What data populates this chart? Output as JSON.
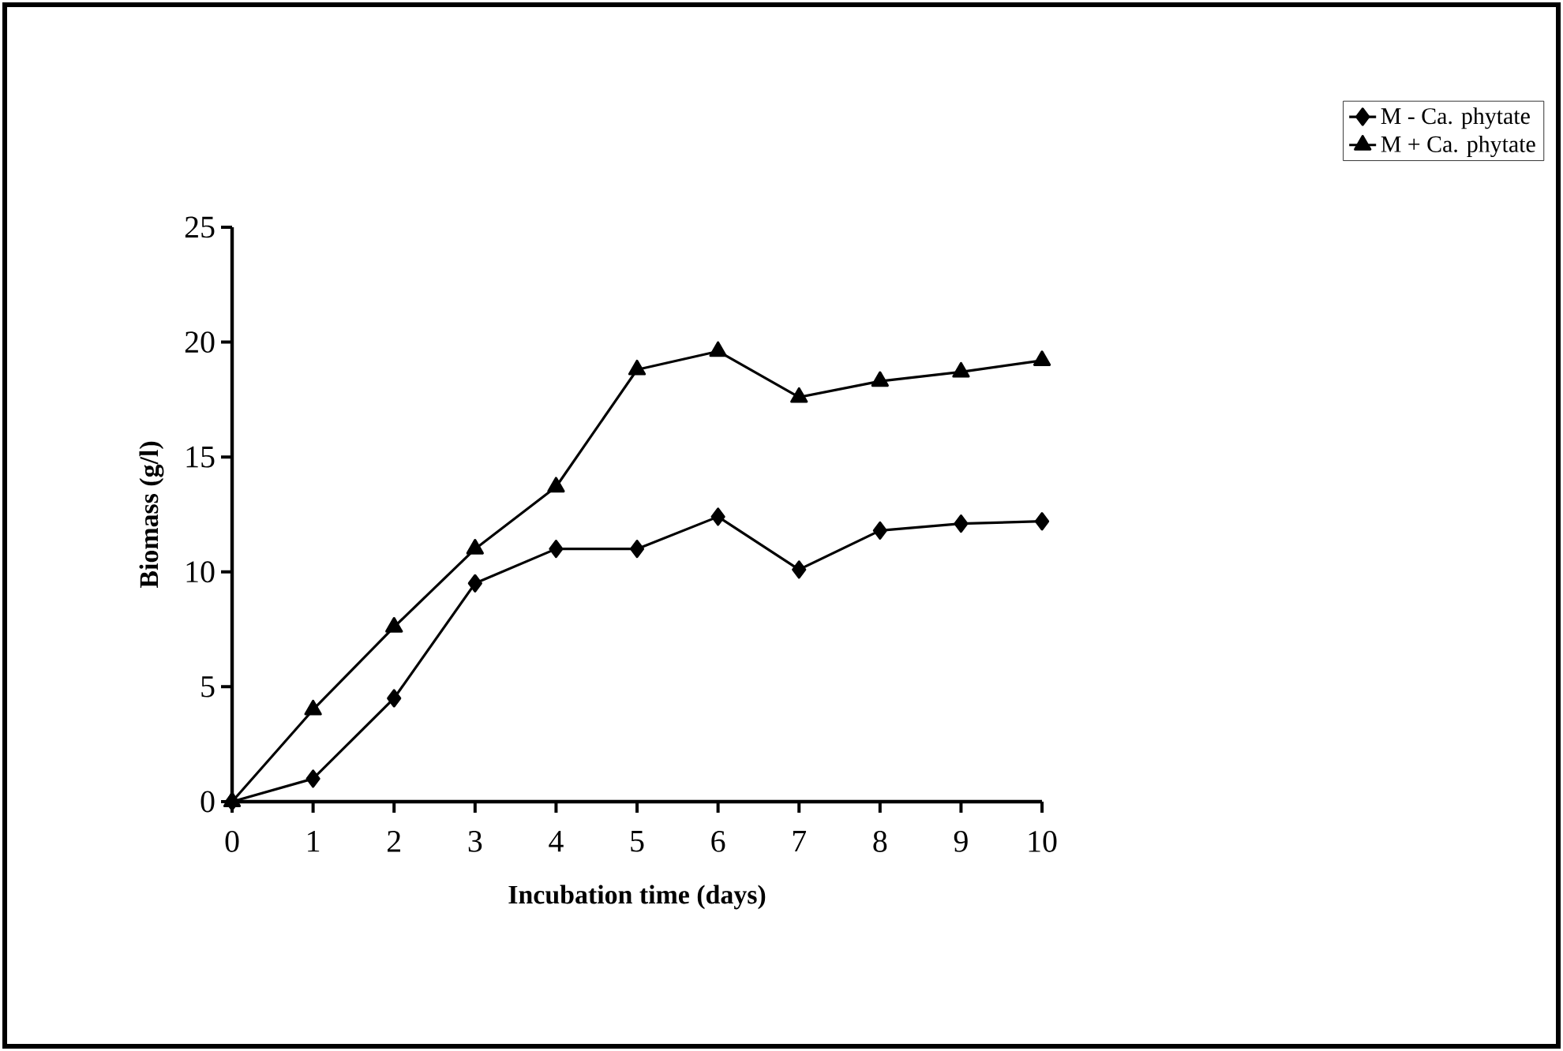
{
  "chart_data": {
    "type": "line",
    "xlabel": "Incubation time (days)",
    "ylabel": "Biomass (g/l)",
    "x": [
      0,
      1,
      2,
      3,
      4,
      5,
      6,
      7,
      8,
      9,
      10
    ],
    "series": [
      {
        "name": "M - Ca. phytate",
        "color": "#000000",
        "marker": "diamond",
        "values": [
          0,
          1.0,
          4.5,
          9.5,
          11.0,
          11.0,
          12.4,
          10.1,
          11.8,
          12.1,
          12.2
        ]
      },
      {
        "name": "M + Ca. phytate",
        "color": "#000000",
        "marker": "triangle",
        "values": [
          0,
          4.0,
          7.6,
          11.0,
          13.7,
          18.8,
          19.6,
          17.6,
          18.3,
          18.7,
          19.2
        ]
      }
    ],
    "xlim": [
      0,
      10
    ],
    "ylim": [
      0,
      25
    ],
    "xticks": [
      0,
      1,
      2,
      3,
      4,
      5,
      6,
      7,
      8,
      9,
      10
    ],
    "yticks": [
      0,
      5,
      10,
      15,
      20,
      25
    ],
    "grid": false,
    "legend": "top right",
    "line_style": "solid"
  }
}
